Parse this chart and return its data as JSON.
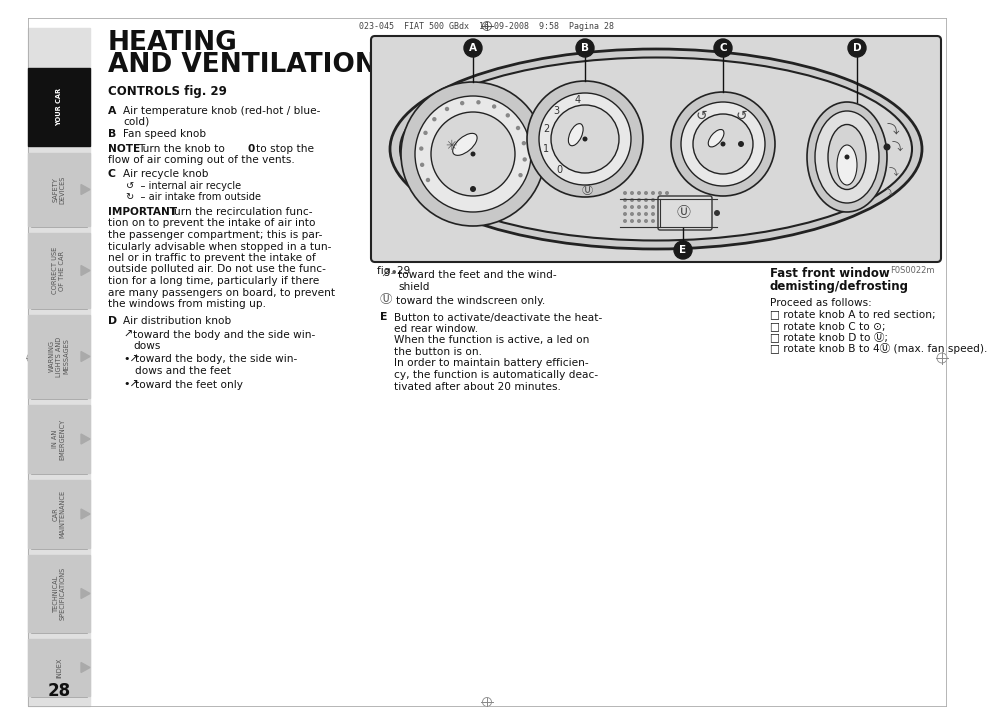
{
  "page_bg": "#ffffff",
  "header_text": "023-045  FIAT 500 GBdx  16-09-2008  9:58  Pagina 28",
  "title_line1": "HEATING",
  "title_line2": "AND VENTILATION",
  "controls_heading": "CONTROLS fig. 29",
  "label_A": "A",
  "text_A": "Air temperature knob (red-hot / blue-\ncold)",
  "label_B": "B",
  "text_B": "Fan speed knob",
  "note_text": "NOTE Turn the knob to 0 to stop the\nflow of air coming out of the vents.",
  "label_C": "C",
  "text_C": "Air recycle knob",
  "text_C_sub1": "– internal air recycle",
  "text_C_sub2": "– air intake from outside",
  "important_text": "IMPORTANT Turn the recirculation func-\ntion on to prevent the intake of air into\nthe passenger compartment; this is par-\nticularly advisable when stopped in a tun-\nnel or in traffic to prevent the intake of\noutside polluted air. Do not use the func-\ntion for a long time, particularly if there\nare many passengers on board, to prevent\nthe windows from misting up.",
  "label_D": "D",
  "text_D": "Air distribution knob",
  "text_D_sub1a": "toward the body and the side win-",
  "text_D_sub1b": "dows",
  "text_D_sub2a": "toward the body, the side win-",
  "text_D_sub2b": "dows and the feet",
  "text_D_sub3": "toward the feet only",
  "text_col2_1a": "toward the feet and the wind-",
  "text_col2_1b": "shield",
  "text_col2_2": "toward the windscreen only.",
  "label_E": "E",
  "text_E_lines": [
    "Button to activate/deactivate the heat-",
    "ed rear window.",
    "When the function is active, a led on",
    "the button is on.",
    "In order to maintain battery efficien-",
    "cy, the function is automatically deac-",
    "tivated after about 20 minutes."
  ],
  "fast_front_title1": "Fast front window",
  "fast_front_title2": "demisting/defrosting",
  "fast_front_lines": [
    "Proceed as follows:",
    "□ rotate knob A to red section;",
    "□ rotate knob C to ⊙;",
    "□ rotate knob D to Ⓤ;",
    "□ rotate knob B to 4Ⓤ (max. fan speed)."
  ],
  "fig_caption": "fig. 29",
  "fig_code": "F0S0022m",
  "diagram_bg": "#d8d8d8",
  "sidebar_labels": [
    "YOUR CAR",
    "SAFETY\nDEVICES",
    "CORRECT USE\nOF THE CAR",
    "WARNING\nLIGHTS AND\nMESSAGES",
    "IN AN\nEMERGENCY",
    "CAR\nMAINTENANCE",
    "TECHNICAL\nSPECIFICATIONS",
    "INDEX"
  ],
  "page_number": "28"
}
